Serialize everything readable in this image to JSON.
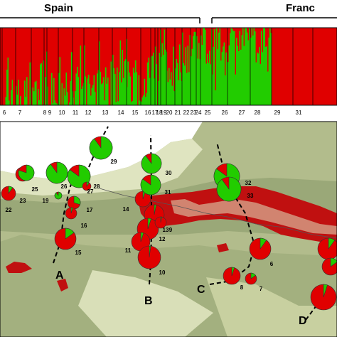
{
  "countries": [
    {
      "name": "Spain"
    },
    {
      "name": "Franc"
    }
  ],
  "structure_bar": {
    "colors": {
      "cluster_1": "#e00000",
      "cluster_2": "#22cc00"
    },
    "populations": [
      {
        "id": "6",
        "green": 0.08
      },
      {
        "id": "7",
        "green": 0.1
      },
      {
        "id": "8",
        "green": 0.07
      },
      {
        "id": "9",
        "green": 0.15
      },
      {
        "id": "10",
        "green": 0.12
      },
      {
        "id": "11",
        "green": 0.12
      },
      {
        "id": "12",
        "green": 0.2
      },
      {
        "id": "13",
        "green": 0.18
      },
      {
        "id": "14",
        "green": 0.25
      },
      {
        "id": "15",
        "green": 0.35
      },
      {
        "id": "16",
        "green": 0.3
      },
      {
        "id": "17",
        "green": 0.4
      },
      {
        "id": "18",
        "green": 0.45
      },
      {
        "id": "19",
        "green": 0.55
      },
      {
        "id": "20",
        "green": 0.6
      },
      {
        "id": "21",
        "green": 0.65
      },
      {
        "id": "22",
        "green": 0.4
      },
      {
        "id": "23",
        "green": 0.55
      },
      {
        "id": "24",
        "green": 0.7
      },
      {
        "id": "25",
        "green": 0.8
      },
      {
        "id": "26",
        "green": 0.85
      },
      {
        "id": "27",
        "green": 0.82
      },
      {
        "id": "28",
        "green": 0.78
      },
      {
        "id": "29",
        "green": 0.85
      },
      {
        "id": "31",
        "green": 0.8
      }
    ]
  },
  "map": {
    "transects": [
      {
        "label": "A"
      },
      {
        "label": "B"
      },
      {
        "label": "C"
      },
      {
        "label": "D"
      }
    ],
    "populations": [
      {
        "id": "22",
        "green": 0.1
      },
      {
        "id": "23",
        "green": 0.05
      },
      {
        "id": "25",
        "green": 0.8
      },
      {
        "id": "26",
        "green": 0.9
      },
      {
        "id": "27",
        "green": 0.85
      },
      {
        "id": "28",
        "green": 0.1
      },
      {
        "id": "29",
        "green": 0.9
      },
      {
        "id": "19",
        "green": 0.9
      },
      {
        "id": "17",
        "green": 0.3
      },
      {
        "id": "16",
        "green": 0.05
      },
      {
        "id": "15",
        "green": 0.15
      },
      {
        "id": "14",
        "green": 0.05
      },
      {
        "id": "30",
        "green": 0.9
      },
      {
        "id": "31",
        "green": 0.85
      },
      {
        "id": "13",
        "green": 0.03
      },
      {
        "id": "12",
        "green": 0.05
      },
      {
        "id": "11",
        "green": 0.05
      },
      {
        "id": "10",
        "green": 0.02
      },
      {
        "id": "9",
        "green": 0.03
      },
      {
        "id": "32",
        "green": 0.85
      },
      {
        "id": "33",
        "green": 0.9
      },
      {
        "id": "6",
        "green": 0.1
      },
      {
        "id": "8",
        "green": 0.05
      },
      {
        "id": "7",
        "green": 0.15
      },
      {
        "id": "d1",
        "green": 0.1
      },
      {
        "id": "d2",
        "green": 0.15
      },
      {
        "id": "d3",
        "green": 0.05
      }
    ]
  }
}
